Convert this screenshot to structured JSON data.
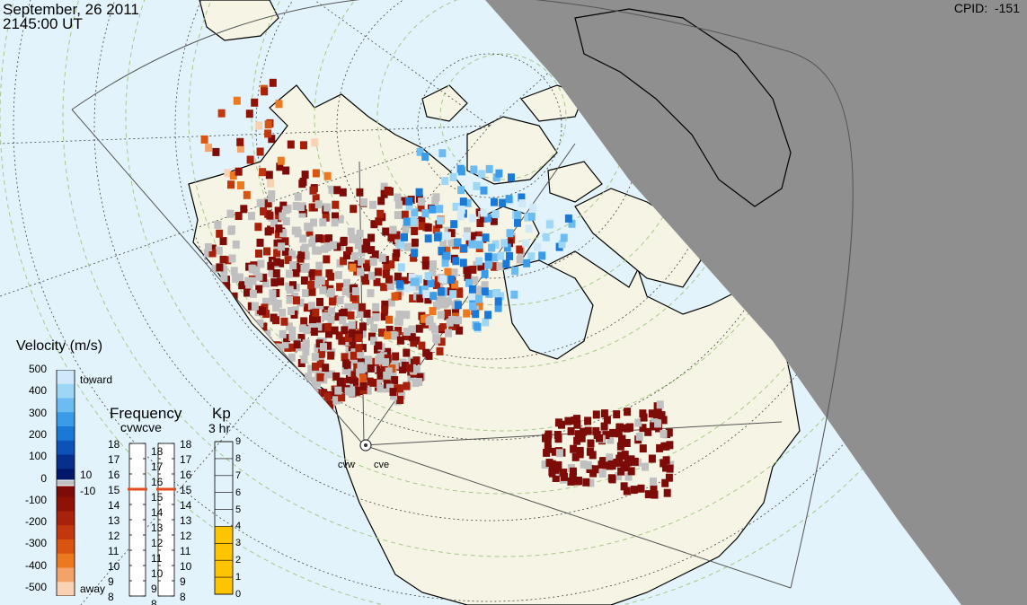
{
  "header": {
    "date": "September, 26 2011",
    "time": "2145:00 UT",
    "cpid_label": "CPID:",
    "cpid_value": "-151"
  },
  "velocity_scale": {
    "title": "Velocity (m/s)",
    "ticks": [
      "500",
      "400",
      "300",
      "200",
      "100",
      "0",
      "-100",
      "-200",
      "-300",
      "-400",
      "-500"
    ],
    "toward_label": "toward",
    "away_label": "away",
    "gs_upper": "10",
    "gs_lower": "-10",
    "colors": [
      "#cfe9fb",
      "#9ed6f6",
      "#6cbcf2",
      "#3a9ce8",
      "#1a78d6",
      "#0c52b8",
      "#07308c",
      "#03186a",
      "#7d0c08",
      "#8f1206",
      "#a8210a",
      "#c2380c",
      "#d95410",
      "#ec7820",
      "#f3a368",
      "#f9d2b4"
    ],
    "ground_scatter_color": "#c0c0c0"
  },
  "frequency": {
    "title": "Frequency",
    "radars": "cvwcve",
    "ticks": [
      "18",
      "17",
      "16",
      "15",
      "14",
      "13",
      "12",
      "11",
      "10",
      "9",
      "8"
    ],
    "values_mhz": [
      15,
      15
    ],
    "marker_color": "#e14d1c"
  },
  "kp": {
    "title": "Kp",
    "subtitle": "3 hr",
    "ticks": [
      "9",
      "8",
      "7",
      "6",
      "5",
      "4",
      "3",
      "2",
      "1",
      "0"
    ],
    "value": 4,
    "fill_color": "#ffc400"
  },
  "radars": [
    {
      "code": "cvw"
    },
    {
      "code": "cve"
    }
  ],
  "map_colors": {
    "ocean": "#e2f3fb",
    "land": "#f6f5e5",
    "night_shade": "#8f8f8f",
    "coast": "#000000",
    "lat_circle": "#a8c88a",
    "grid": "#555555"
  }
}
